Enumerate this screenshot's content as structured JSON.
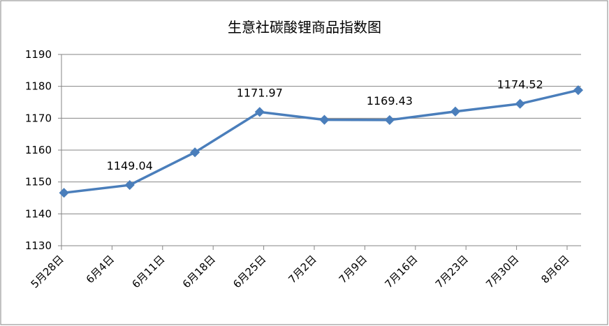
{
  "chart_data": {
    "type": "line",
    "title": "生意社碳酸锂商品指数图",
    "categories": [
      "5月28日",
      "6月4日",
      "6月11日",
      "6月18日",
      "6月25日",
      "7月2日",
      "7月9日",
      "7月16日",
      "7月23日",
      "7月30日",
      "8月6日"
    ],
    "series": [
      {
        "name": "生意社碳酸锂商品指数",
        "color": "#4a7ebb",
        "x": [
          0.05,
          1.35,
          2.64,
          3.92,
          5.2,
          6.49,
          7.79,
          9.07,
          10.22
        ],
        "values": [
          1146.6,
          1149.04,
          1159.3,
          1171.97,
          1169.5,
          1169.43,
          1172.1,
          1174.52,
          1178.8
        ],
        "value_labels": [
          null,
          "1149.04",
          null,
          "1171.97",
          null,
          "1169.43",
          null,
          "1174.52",
          null
        ]
      }
    ],
    "ylim": [
      1130,
      1190
    ],
    "yticks": [
      1130,
      1140,
      1150,
      1160,
      1170,
      1180,
      1190
    ],
    "grid": true
  }
}
